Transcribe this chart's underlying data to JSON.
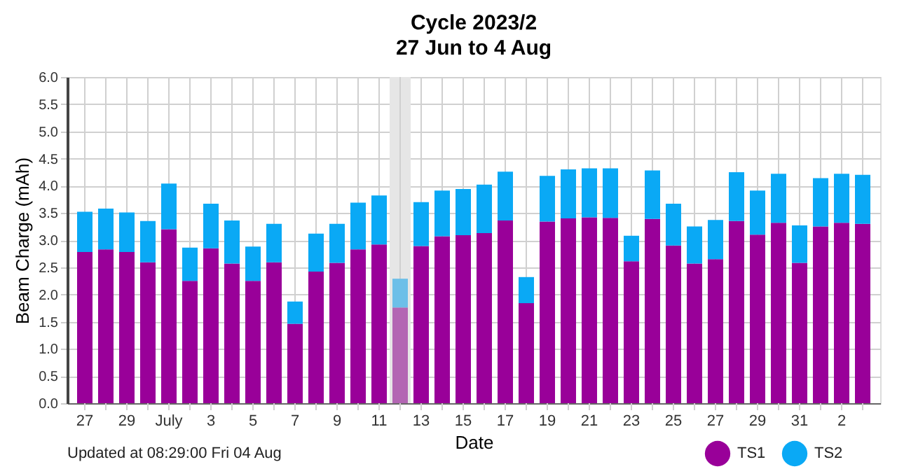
{
  "chart_data": {
    "type": "bar",
    "title": "Cycle 2023/2",
    "subtitle": "27 Jun to 4 Aug",
    "xlabel": "Date",
    "ylabel": "Beam Charge (mAh)",
    "x": [
      "2023-06-27",
      "2023-06-28",
      "2023-06-29",
      "2023-06-30",
      "2023-07-01",
      "2023-07-02",
      "2023-07-03",
      "2023-07-04",
      "2023-07-05",
      "2023-07-06",
      "2023-07-07",
      "2023-07-08",
      "2023-07-09",
      "2023-07-10",
      "2023-07-11",
      "2023-07-12",
      "2023-07-13",
      "2023-07-14",
      "2023-07-15",
      "2023-07-16",
      "2023-07-17",
      "2023-07-18",
      "2023-07-19",
      "2023-07-20",
      "2023-07-21",
      "2023-07-22",
      "2023-07-23",
      "2023-07-24",
      "2023-07-25",
      "2023-07-26",
      "2023-07-27",
      "2023-07-28",
      "2023-07-29",
      "2023-07-30",
      "2023-07-31",
      "2023-08-01",
      "2023-08-02",
      "2023-08-03"
    ],
    "stacked": true,
    "series": [
      {
        "name": "TS1",
        "color": "#990099",
        "colors": [
          "#990099",
          "#990099",
          "#990099",
          "#990099",
          "#990099",
          "#990099",
          "#990099",
          "#990099",
          "#990099",
          "#990099",
          "#990099",
          "#990099",
          "#990099",
          "#990099",
          "#990099",
          "#b366b3",
          "#990099",
          "#990099",
          "#990099",
          "#990099",
          "#990099",
          "#990099",
          "#990099",
          "#990099",
          "#990099",
          "#990099",
          "#990099",
          "#990099",
          "#990099",
          "#990099",
          "#990099",
          "#990099",
          "#990099",
          "#990099",
          "#990099",
          "#990099",
          "#990099",
          "#990099"
        ],
        "values": [
          2.78,
          2.83,
          2.78,
          2.59,
          3.2,
          2.25,
          2.85,
          2.57,
          2.25,
          2.59,
          1.46,
          2.42,
          2.58,
          2.83,
          2.92,
          1.76,
          2.89,
          3.07,
          3.09,
          3.13,
          3.36,
          1.84,
          3.34,
          3.4,
          3.42,
          3.41,
          2.61,
          3.39,
          2.9,
          2.57,
          2.65,
          3.35,
          3.1,
          3.32,
          2.58,
          3.25,
          3.32,
          3.3
        ]
      },
      {
        "name": "TS2",
        "color": "#0aa9f5",
        "colors": [
          "#0aa9f5",
          "#0aa9f5",
          "#0aa9f5",
          "#0aa9f5",
          "#0aa9f5",
          "#0aa9f5",
          "#0aa9f5",
          "#0aa9f5",
          "#0aa9f5",
          "#0aa9f5",
          "#0aa9f5",
          "#0aa9f5",
          "#0aa9f5",
          "#0aa9f5",
          "#0aa9f5",
          "#6cbfe8",
          "#0aa9f5",
          "#0aa9f5",
          "#0aa9f5",
          "#0aa9f5",
          "#0aa9f5",
          "#0aa9f5",
          "#0aa9f5",
          "#0aa9f5",
          "#0aa9f5",
          "#0aa9f5",
          "#0aa9f5",
          "#0aa9f5",
          "#0aa9f5",
          "#0aa9f5",
          "#0aa9f5",
          "#0aa9f5",
          "#0aa9f5",
          "#0aa9f5",
          "#0aa9f5",
          "#0aa9f5",
          "#0aa9f5",
          "#0aa9f5"
        ],
        "values": [
          0.74,
          0.75,
          0.73,
          0.76,
          0.84,
          0.61,
          0.82,
          0.79,
          0.63,
          0.71,
          0.41,
          0.7,
          0.72,
          0.86,
          0.9,
          0.53,
          0.81,
          0.84,
          0.85,
          0.89,
          0.9,
          0.48,
          0.84,
          0.9,
          0.9,
          0.91,
          0.47,
          0.89,
          0.77,
          0.68,
          0.72,
          0.9,
          0.81,
          0.9,
          0.69,
          0.89,
          0.9,
          0.9
        ]
      }
    ],
    "xlim": [
      "2023-06-26T12:00",
      "2023-08-03T12:00"
    ],
    "xticks": [
      {
        "value": "2023-06-27",
        "label": "27"
      },
      {
        "value": "2023-06-28",
        "label": null
      },
      {
        "value": "2023-06-29",
        "label": "29"
      },
      {
        "value": "2023-06-30",
        "label": null
      },
      {
        "value": "2023-07-01",
        "label": "July"
      },
      {
        "value": "2023-07-02",
        "label": null
      },
      {
        "value": "2023-07-03",
        "label": "3"
      },
      {
        "value": "2023-07-04",
        "label": null
      },
      {
        "value": "2023-07-05",
        "label": "5"
      },
      {
        "value": "2023-07-06",
        "label": null
      },
      {
        "value": "2023-07-07",
        "label": "7"
      },
      {
        "value": "2023-07-08",
        "label": null
      },
      {
        "value": "2023-07-09",
        "label": "9"
      },
      {
        "value": "2023-07-10",
        "label": null
      },
      {
        "value": "2023-07-11",
        "label": "11"
      },
      {
        "value": "2023-07-12",
        "label": null
      },
      {
        "value": "2023-07-13",
        "label": "13"
      },
      {
        "value": "2023-07-14",
        "label": null
      },
      {
        "value": "2023-07-15",
        "label": "15"
      },
      {
        "value": "2023-07-16",
        "label": null
      },
      {
        "value": "2023-07-17",
        "label": "17"
      },
      {
        "value": "2023-07-18",
        "label": null
      },
      {
        "value": "2023-07-19",
        "label": "19"
      },
      {
        "value": "2023-07-20",
        "label": null
      },
      {
        "value": "2023-07-21",
        "label": "21"
      },
      {
        "value": "2023-07-22",
        "label": null
      },
      {
        "value": "2023-07-23",
        "label": "23"
      },
      {
        "value": "2023-07-24",
        "label": null
      },
      {
        "value": "2023-07-25",
        "label": "25"
      },
      {
        "value": "2023-07-26",
        "label": null
      },
      {
        "value": "2023-07-27",
        "label": "27"
      },
      {
        "value": "2023-07-28",
        "label": null
      },
      {
        "value": "2023-07-29",
        "label": "29"
      },
      {
        "value": "2023-07-30",
        "label": null
      },
      {
        "value": "2023-07-31",
        "label": "31"
      },
      {
        "value": "2023-08-01",
        "label": null
      },
      {
        "value": "2023-08-02",
        "label": "2"
      },
      {
        "value": "2023-08-03",
        "label": null
      }
    ],
    "ylim": [
      0,
      6
    ],
    "yticks": [
      {
        "value": 0,
        "label": "0.0"
      },
      {
        "value": 0.5,
        "label": "0.5"
      },
      {
        "value": 1,
        "label": "1.0"
      },
      {
        "value": 1.5,
        "label": "1.5"
      },
      {
        "value": 2,
        "label": "2.0"
      },
      {
        "value": 2.5,
        "label": "2.5"
      },
      {
        "value": 3,
        "label": "3.0"
      },
      {
        "value": 3.5,
        "label": "3.5"
      },
      {
        "value": 4,
        "label": "4.0"
      },
      {
        "value": 4.5,
        "label": "4.5"
      },
      {
        "value": 5,
        "label": "5.0"
      },
      {
        "value": 5.5,
        "label": "5.5"
      },
      {
        "value": 6,
        "label": "6.0"
      }
    ],
    "bands": [
      {
        "axis": "x",
        "from": "2023-07-11T12:00",
        "to": "2023-07-12T12:00",
        "color": "#e6e6e6"
      }
    ],
    "grid": true,
    "legend": "bottom right",
    "marker": "circle",
    "annotations": [
      "Updated at 08:29:00 Fri 04 Aug"
    ]
  }
}
